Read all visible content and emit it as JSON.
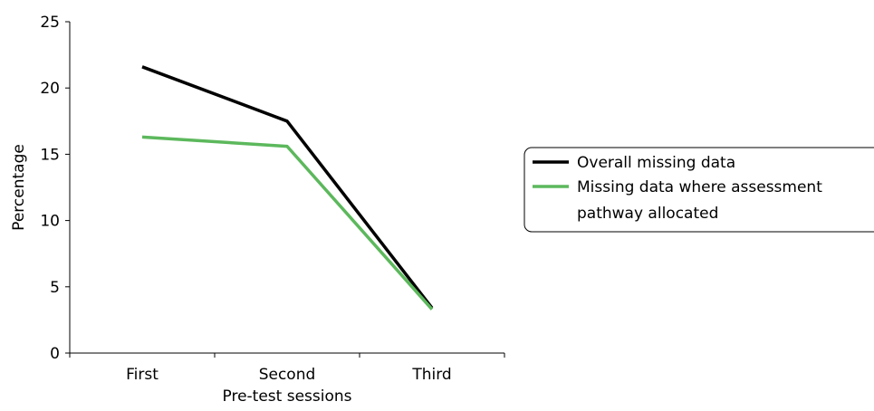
{
  "chart_data": {
    "type": "line",
    "categories": [
      "First",
      "Second",
      "Third"
    ],
    "series": [
      {
        "name": "Overall missing data",
        "values": [
          21.6,
          17.5,
          3.4
        ],
        "color": "#000000"
      },
      {
        "name": "Missing data where assessment pathway allocated",
        "values": [
          16.3,
          15.6,
          3.3
        ],
        "color": "#5cb85c"
      }
    ],
    "xlabel": "Pre-test sessions",
    "ylabel": "Percentage",
    "ylim": [
      0,
      25
    ],
    "yticks": [
      "0",
      "5",
      "10",
      "15",
      "20",
      "25"
    ],
    "grid": false,
    "legend_position": "right",
    "legend": {
      "series_0_label": "Overall missing data",
      "series_1_line1": "Missing data where assessment",
      "series_1_line2": "pathway allocated"
    }
  }
}
